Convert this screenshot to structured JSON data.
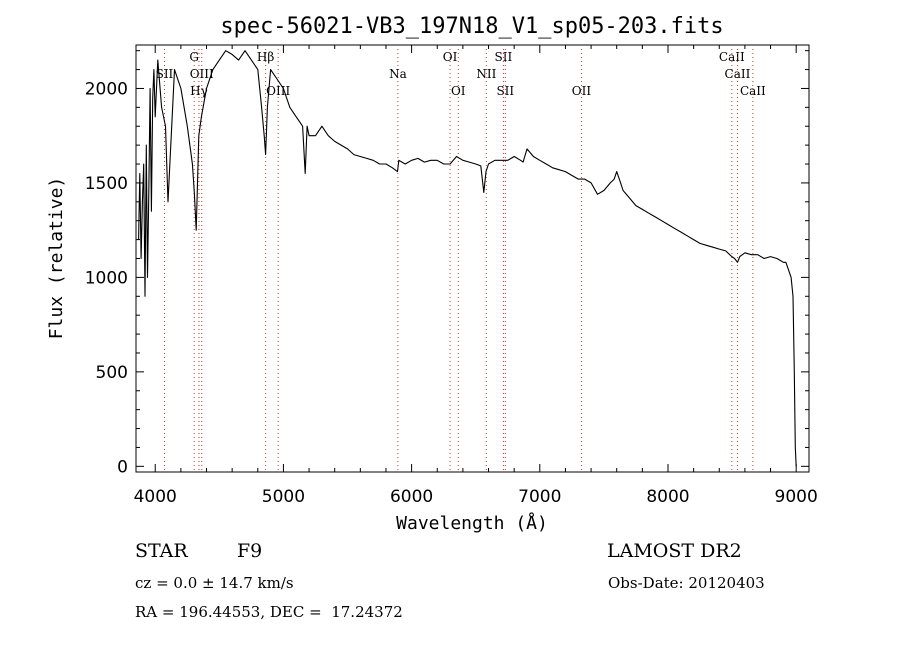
{
  "chart_data": {
    "type": "line",
    "title": "spec-56021-VB3_197N18_V1_sp05-203.fits",
    "xlabel": "Wavelength (Å)",
    "ylabel": "Flux (relative)",
    "xlim": [
      3850,
      9100
    ],
    "ylim": [
      -30,
      2230
    ],
    "x_ticks": [
      4000,
      5000,
      6000,
      7000,
      8000,
      9000
    ],
    "y_ticks": [
      0,
      500,
      1000,
      1500,
      2000
    ],
    "grid": false,
    "line_color": "#000000",
    "marker_color": "#cc3333",
    "series": [
      {
        "x": [
          3870,
          3880,
          3890,
          3900,
          3910,
          3920,
          3930,
          3940,
          3950,
          3960,
          3970,
          3980,
          3990,
          4000,
          4020,
          4050,
          4080,
          4100,
          4150,
          4200,
          4250,
          4290,
          4305,
          4320,
          4340,
          4360,
          4400,
          4450,
          4500,
          4550,
          4600,
          4650,
          4700,
          4750,
          4800,
          4830,
          4850,
          4861,
          4875,
          4900,
          4950,
          5000,
          5050,
          5100,
          5150,
          5170,
          5185,
          5200,
          5250,
          5300,
          5350,
          5400,
          5450,
          5500,
          5550,
          5600,
          5650,
          5700,
          5750,
          5800,
          5850,
          5890,
          5900,
          5950,
          6000,
          6050,
          6100,
          6150,
          6200,
          6250,
          6300,
          6350,
          6400,
          6450,
          6500,
          6540,
          6563,
          6580,
          6600,
          6650,
          6700,
          6750,
          6800,
          6850,
          6870,
          6900,
          6950,
          7000,
          7050,
          7100,
          7150,
          7200,
          7250,
          7300,
          7350,
          7400,
          7450,
          7500,
          7550,
          7580,
          7600,
          7620,
          7650,
          7700,
          7750,
          7800,
          7850,
          7900,
          7950,
          8000,
          8050,
          8100,
          8150,
          8200,
          8250,
          8300,
          8350,
          8400,
          8450,
          8498,
          8520,
          8542,
          8560,
          8600,
          8650,
          8700,
          8750,
          8800,
          8850,
          8900,
          8920,
          8940,
          8960,
          8975,
          8985,
          8993,
          9000
        ],
        "y": [
          1200,
          1550,
          1100,
          1400,
          1600,
          900,
          1700,
          1000,
          1450,
          2000,
          1350,
          1950,
          2100,
          1850,
          2150,
          1900,
          1800,
          1400,
          2100,
          2000,
          1800,
          1600,
          1450,
          1250,
          1750,
          1850,
          2000,
          2100,
          2150,
          2200,
          2180,
          2150,
          2200,
          2150,
          2100,
          1900,
          1750,
          1650,
          1900,
          2100,
          2050,
          2000,
          1900,
          1850,
          1800,
          1550,
          1800,
          1750,
          1750,
          1800,
          1750,
          1720,
          1700,
          1680,
          1650,
          1640,
          1630,
          1620,
          1600,
          1600,
          1580,
          1560,
          1620,
          1600,
          1620,
          1630,
          1610,
          1620,
          1620,
          1600,
          1600,
          1640,
          1620,
          1610,
          1600,
          1590,
          1450,
          1560,
          1600,
          1620,
          1620,
          1620,
          1640,
          1620,
          1610,
          1680,
          1640,
          1620,
          1600,
          1580,
          1570,
          1560,
          1540,
          1520,
          1520,
          1500,
          1440,
          1460,
          1500,
          1520,
          1560,
          1520,
          1460,
          1420,
          1380,
          1360,
          1340,
          1320,
          1300,
          1280,
          1260,
          1240,
          1220,
          1200,
          1180,
          1170,
          1160,
          1150,
          1140,
          1110,
          1100,
          1080,
          1110,
          1130,
          1120,
          1120,
          1100,
          1110,
          1100,
          1080,
          1080,
          1040,
          1000,
          900,
          500,
          100,
          0
        ]
      }
    ],
    "spectral_lines": [
      {
        "label": "SII",
        "x": 4072,
        "row": 1
      },
      {
        "label": "G",
        "x": 4304,
        "row": 0
      },
      {
        "label": "OIII",
        "x": 4363,
        "row": 1
      },
      {
        "label": "Hγ",
        "x": 4341,
        "row": 2
      },
      {
        "label": "Hβ",
        "x": 4861,
        "row": 0
      },
      {
        "label": "OIII",
        "x": 4959,
        "row": 2
      },
      {
        "label": "Na",
        "x": 5893,
        "row": 1
      },
      {
        "label": "OI",
        "x": 6300,
        "row": 0
      },
      {
        "label": "OI",
        "x": 6364,
        "row": 2
      },
      {
        "label": "NII",
        "x": 6583,
        "row": 1
      },
      {
        "label": "SII",
        "x": 6716,
        "row": 0
      },
      {
        "label": "SII",
        "x": 6731,
        "row": 2
      },
      {
        "label": "OII",
        "x": 7325,
        "row": 2
      },
      {
        "label": "CaII",
        "x": 8498,
        "row": 0
      },
      {
        "label": "CaII",
        "x": 8542,
        "row": 1
      },
      {
        "label": "CaII",
        "x": 8662,
        "row": 2
      }
    ]
  },
  "info": {
    "object_class": "STAR",
    "subclass": "F9",
    "redshift": "cz = 0.0 ± 14.7 km/s",
    "coords": "RA = 196.44553, DEC =  17.24372",
    "survey": "LAMOST DR2",
    "obs_date": "Obs-Date: 20120403"
  }
}
